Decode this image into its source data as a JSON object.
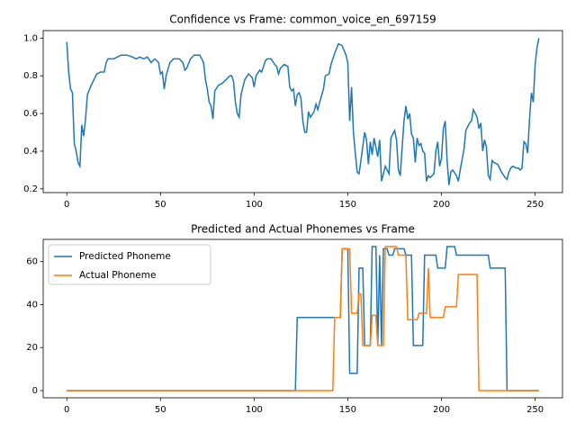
{
  "chart_data": [
    {
      "type": "line",
      "title": "Confidence vs Frame: common_voice_en_697159",
      "color": "#1f77b4",
      "x": [
        0,
        1,
        2,
        3,
        4,
        5,
        6,
        7,
        8,
        9,
        10,
        11,
        13,
        15,
        16,
        18,
        20,
        21,
        22,
        25,
        27,
        29,
        32,
        35,
        37,
        39,
        41,
        43,
        45,
        47,
        49,
        50,
        51,
        52,
        53,
        55,
        57,
        60,
        62,
        63,
        64,
        66,
        68,
        71,
        73,
        74,
        75,
        76,
        77,
        78,
        79,
        81,
        83,
        85,
        87,
        88,
        89,
        90,
        91,
        92,
        93,
        95,
        97,
        99,
        100,
        101,
        103,
        104,
        106,
        107,
        109,
        111,
        112,
        113,
        114,
        116,
        118,
        119,
        120,
        121,
        122,
        123,
        124,
        125,
        126,
        127,
        128,
        129,
        130,
        132,
        133,
        134,
        135,
        137,
        138,
        140,
        141,
        143,
        145,
        147,
        149,
        150,
        151,
        152,
        153,
        154,
        155,
        156,
        157,
        159,
        160,
        161,
        162,
        163,
        164,
        165,
        166,
        167,
        168,
        169,
        170,
        172,
        173,
        174,
        175,
        176,
        177,
        178,
        179,
        180,
        181,
        182,
        183,
        184,
        185,
        186,
        187,
        188,
        189,
        190,
        191,
        192,
        193,
        194,
        196,
        197,
        198,
        199,
        200,
        201,
        202,
        203,
        204,
        205,
        206,
        208,
        209,
        210,
        212,
        213,
        215,
        216,
        217,
        218,
        219,
        220,
        221,
        222,
        223,
        224,
        225,
        226,
        227,
        228,
        230,
        232,
        234,
        235,
        236,
        237,
        238,
        240,
        241,
        242,
        243,
        244,
        245,
        246,
        247,
        248,
        249,
        250,
        251,
        252
      ],
      "values": [
        0.98,
        0.82,
        0.73,
        0.71,
        0.44,
        0.4,
        0.34,
        0.32,
        0.54,
        0.48,
        0.57,
        0.7,
        0.75,
        0.79,
        0.81,
        0.82,
        0.82,
        0.87,
        0.89,
        0.89,
        0.9,
        0.91,
        0.91,
        0.9,
        0.89,
        0.9,
        0.89,
        0.9,
        0.87,
        0.89,
        0.87,
        0.81,
        0.82,
        0.73,
        0.8,
        0.87,
        0.89,
        0.89,
        0.87,
        0.83,
        0.84,
        0.89,
        0.91,
        0.91,
        0.87,
        0.78,
        0.73,
        0.66,
        0.64,
        0.57,
        0.72,
        0.75,
        0.76,
        0.78,
        0.8,
        0.8,
        0.77,
        0.66,
        0.6,
        0.58,
        0.7,
        0.78,
        0.81,
        0.79,
        0.74,
        0.8,
        0.83,
        0.82,
        0.88,
        0.89,
        0.89,
        0.86,
        0.85,
        0.81,
        0.84,
        0.86,
        0.85,
        0.74,
        0.72,
        0.73,
        0.64,
        0.7,
        0.71,
        0.68,
        0.56,
        0.5,
        0.5,
        0.61,
        0.58,
        0.61,
        0.65,
        0.62,
        0.66,
        0.73,
        0.8,
        0.81,
        0.86,
        0.92,
        0.97,
        0.96,
        0.91,
        0.87,
        0.56,
        0.74,
        0.5,
        0.39,
        0.29,
        0.28,
        0.35,
        0.5,
        0.46,
        0.33,
        0.45,
        0.38,
        0.47,
        0.42,
        0.37,
        0.46,
        0.24,
        0.28,
        0.32,
        0.28,
        0.47,
        0.49,
        0.51,
        0.46,
        0.3,
        0.27,
        0.42,
        0.56,
        0.64,
        0.57,
        0.6,
        0.49,
        0.47,
        0.34,
        0.47,
        0.43,
        0.44,
        0.4,
        0.39,
        0.24,
        0.27,
        0.26,
        0.28,
        0.4,
        0.45,
        0.32,
        0.36,
        0.52,
        0.56,
        0.35,
        0.22,
        0.29,
        0.3,
        0.27,
        0.24,
        0.3,
        0.41,
        0.51,
        0.55,
        0.56,
        0.62,
        0.6,
        0.58,
        0.52,
        0.55,
        0.4,
        0.46,
        0.42,
        0.27,
        0.25,
        0.35,
        0.34,
        0.33,
        0.29,
        0.26,
        0.25,
        0.29,
        0.31,
        0.32,
        0.31,
        0.31,
        0.3,
        0.31,
        0.45,
        0.44,
        0.39,
        0.57,
        0.71,
        0.66,
        0.86,
        0.95,
        1.0
      ],
      "xlim": [
        -12.6,
        264.6
      ],
      "xticks": [
        0,
        50,
        100,
        150,
        200,
        250
      ],
      "ylim": [
        0.18,
        1.04
      ],
      "yticks": [
        0.2,
        0.4,
        0.6,
        0.8,
        {
          "value": 1.0,
          "label": "1.0"
        }
      ]
    },
    {
      "type": "line",
      "title": "Predicted and Actual Phonemes vs Frame",
      "legend": "upper left",
      "series": [
        {
          "name": "Predicted Phoneme",
          "color": "#1f77b4",
          "x": [
            0,
            122,
            123,
            146,
            147,
            150,
            151,
            155,
            156,
            158,
            159,
            162,
            163,
            165,
            166,
            167,
            168,
            169,
            171,
            172,
            174,
            175,
            180,
            181,
            184,
            185,
            190,
            191,
            197,
            198,
            202,
            203,
            207,
            208,
            225,
            226,
            234,
            235,
            252
          ],
          "values": [
            0,
            0,
            34,
            34,
            66,
            66,
            8,
            8,
            57,
            57,
            21,
            21,
            67,
            67,
            21,
            63,
            21,
            66,
            66,
            63,
            63,
            66,
            66,
            63,
            63,
            21,
            21,
            63,
            63,
            57,
            57,
            67,
            67,
            63,
            63,
            57,
            57,
            0,
            0
          ]
        },
        {
          "name": "Actual Phoneme",
          "color": "#ff7f0e",
          "x": [
            0,
            142,
            143,
            146,
            147,
            151,
            152,
            155,
            156,
            157,
            158,
            162,
            163,
            165,
            166,
            169,
            170,
            176,
            177,
            181,
            182,
            187,
            188,
            192,
            193,
            194,
            201,
            202,
            208,
            209,
            219,
            220,
            252
          ],
          "values": [
            0,
            0,
            34,
            34,
            66,
            66,
            36,
            36,
            45,
            45,
            21,
            21,
            35,
            35,
            21,
            21,
            67,
            67,
            63,
            63,
            33,
            33,
            36,
            36,
            57,
            34,
            34,
            39,
            39,
            54,
            54,
            0,
            0
          ]
        }
      ],
      "xlim": [
        -12.6,
        264.6
      ],
      "xticks": [
        0,
        50,
        100,
        150,
        200,
        250
      ],
      "ylim": [
        -3.35,
        70.35
      ],
      "yticks": [
        0,
        20,
        40,
        60
      ]
    }
  ]
}
